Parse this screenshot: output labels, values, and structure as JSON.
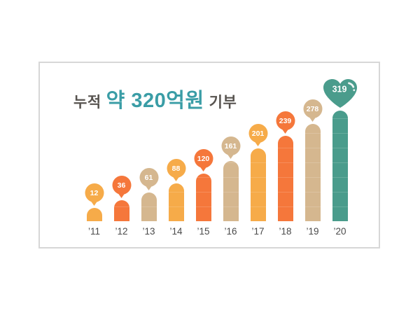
{
  "page": {
    "background": "#FFFFFF"
  },
  "card": {
    "border_color": "#D7D7D7",
    "background": "#FFFFFF"
  },
  "title": {
    "prefix": "누적",
    "highlight": "약 320억원",
    "suffix": "기부",
    "prefix_color": "#57534F",
    "highlight_color": "#3A9DA6"
  },
  "chart_data": {
    "type": "bar",
    "title": "누적 약 320억원 기부",
    "categories": [
      "’11",
      "’12",
      "’13",
      "’14",
      "’15",
      "’16",
      "’17",
      "’18",
      "’19",
      "’20"
    ],
    "values": [
      12,
      36,
      61,
      88,
      120,
      161,
      201,
      239,
      278,
      319
    ],
    "xlabel": "",
    "ylabel": "",
    "ylim": [
      0,
      350
    ],
    "gridlines": false,
    "legend": "none",
    "value_label_style": "pin marker above each bar; heart marker on final bar",
    "palette": {
      "yellow": "#F6AB49",
      "orange": "#F5773B",
      "tan": "#D5B78F",
      "teal": "#4A9C8C"
    },
    "bar_color_keys": [
      "yellow",
      "orange",
      "tan",
      "yellow",
      "orange",
      "tan",
      "yellow",
      "orange",
      "tan",
      "teal"
    ],
    "marker_shapes": [
      "pin",
      "pin",
      "pin",
      "pin",
      "pin",
      "pin",
      "pin",
      "pin",
      "pin",
      "heart"
    ],
    "value_text_color": "#FFFFFF",
    "axis_label_color": "#4A4A4A"
  }
}
